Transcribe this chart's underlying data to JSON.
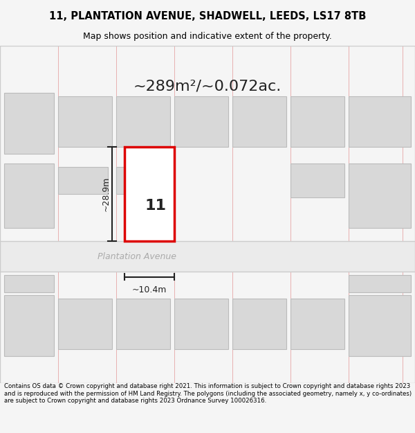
{
  "title_line1": "11, PLANTATION AVENUE, SHADWELL, LEEDS, LS17 8TB",
  "title_line2": "Map shows position and indicative extent of the property.",
  "footer_text": "Contains OS data © Crown copyright and database right 2021. This information is subject to Crown copyright and database rights 2023 and is reproduced with the permission of HM Land Registry. The polygons (including the associated geometry, namely x, y co-ordinates) are subject to Crown copyright and database rights 2023 Ordnance Survey 100026316.",
  "area_label": "~289m²/~0.072ac.",
  "height_label": "~28.9m",
  "width_label": "~10.4m",
  "plot_number": "11",
  "street_name": "Plantation Avenue",
  "bg_color": "#f5f5f5",
  "map_bg": "#ffffff",
  "road_color": "#e8e8e8",
  "road_line_color": "#cccccc",
  "grid_line_color": "#e8b0b0",
  "building_fill": "#d8d8d8",
  "building_edge": "#bbbbbb",
  "plot_fill": "#ffffff",
  "plot_edge": "#dd0000",
  "dim_line_color": "#222222",
  "road_label_color": "#aaaaaa"
}
